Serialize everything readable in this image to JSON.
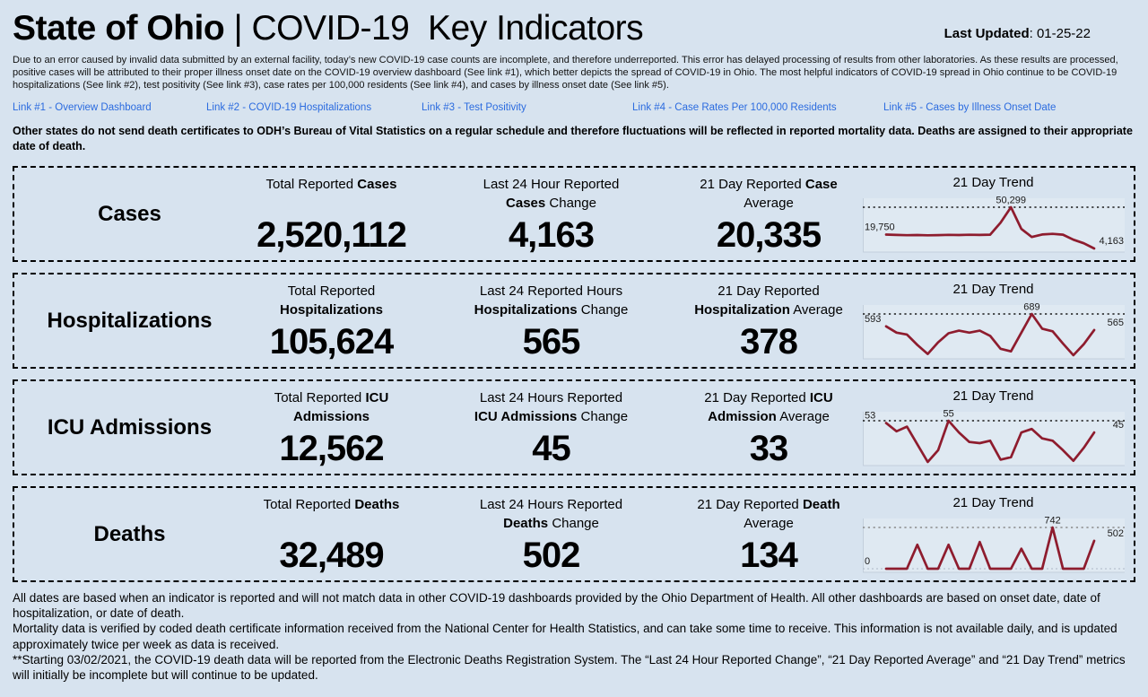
{
  "colors": {
    "page_bg": "#d7e3ef",
    "line": "#8e1c2e",
    "link": "#2b6bdf",
    "border": "#000000"
  },
  "header": {
    "title_bold": "State of Ohio",
    "title_rest": " | COVID-19  Key Indicators",
    "last_updated_label": "Last Updated",
    "last_updated_value": ": 01-25-22"
  },
  "disclaimer": "Due to an error caused by invalid data submitted by an external facility, today’s new COVID-19 case counts are incomplete, and therefore underreported. This error has delayed processing of results from other laboratories. As these results are processed, positive cases will be attributed to their proper illness onset date on the COVID-19 overview dashboard (See link #1), which better depicts the spread of COVID-19 in Ohio. The most helpful indicators of COVID-19 spread in Ohio continue to be COVID-19 hospitalizations (See link #2), test positivity (See link #3), case rates per 100,000 residents (See link #4), and cases by illness onset date (See link #5).",
  "links": [
    "Link #1 - Overview Dashboard",
    "Link #2 - COVID-19 Hospitalizations",
    "Link #3 - Test Positivity",
    "Link #4 - Case Rates Per 100,000 Residents",
    "Link #5 - Cases by Illness Onset Date"
  ],
  "notice": "Other states do not send death certificates to ODH’s Bureau of Vital Statistics on a regular schedule and therefore fluctuations will be reflected in reported mortality data. Deaths are assigned to their appropriate date of death.",
  "rows": [
    {
      "label": "Cases",
      "total_pre": "Total Reported ",
      "total_bold": "Cases",
      "total_post": "",
      "total_value": "2,520,112",
      "change_pre": "Last 24 Hour Reported ",
      "change_bold": "Cases",
      "change_post": " Change",
      "change_value": "4,163",
      "avg_pre": "21 Day Reported ",
      "avg_bold": "Case",
      "avg_post": " Average",
      "avg_value": "20,335",
      "trend_title": "21 Day Trend"
    },
    {
      "label": "Hospitalizations",
      "total_pre": "Total Reported ",
      "total_bold": "Hospitalizations",
      "total_post": "",
      "total_value": "105,624",
      "change_pre": "Last 24 Reported Hours ",
      "change_bold": "Hospitalizations",
      "change_post": " Change",
      "change_value": "565",
      "avg_pre": "21 Day Reported ",
      "avg_bold": "Hospitalization",
      "avg_post": " Average",
      "avg_value": "378",
      "trend_title": "21 Day Trend"
    },
    {
      "label": "ICU Admissions",
      "total_pre": "Total Reported ",
      "total_bold": "ICU Admissions",
      "total_post": "",
      "total_value": "12,562",
      "change_pre": "Last 24 Hours Reported ",
      "change_bold": "ICU Admissions",
      "change_post": " Change",
      "change_value": "45",
      "avg_pre": "21 Day Reported ",
      "avg_bold": "ICU Admission",
      "avg_post": " Average",
      "avg_value": "33",
      "trend_title": "21 Day Trend"
    },
    {
      "label": "Deaths",
      "total_pre": "Total Reported ",
      "total_bold": "Deaths",
      "total_post": "",
      "total_value": "32,489",
      "change_pre": "Last 24 Hours Reported ",
      "change_bold": "Deaths",
      "change_post": " Change",
      "change_value": "502",
      "avg_pre": "21 Day Reported ",
      "avg_bold": "Death",
      "avg_post": " Average",
      "avg_value": "134",
      "trend_title": "21 Day Trend"
    }
  ],
  "chart_data": [
    {
      "type": "line",
      "name": "cases-21-day-trend",
      "title": "21 Day Trend",
      "values": [
        19750,
        19300,
        19000,
        19200,
        18900,
        19100,
        19400,
        19200,
        19500,
        19300,
        19600,
        33000,
        50299,
        26000,
        17000,
        19800,
        20500,
        19600,
        14000,
        10000,
        4163
      ],
      "start_label": "19,750",
      "peak_label": "50,299",
      "end_label": "4,163",
      "ylim": [
        4163,
        50299
      ],
      "line_color": "#8e1c2e",
      "max_line_color": "#1a1a1a",
      "baseline_dotted": false,
      "grid": false,
      "legend": "none"
    },
    {
      "type": "line",
      "name": "hospitalizations-21-day-trend",
      "title": "21 Day Trend",
      "values": [
        593,
        545,
        530,
        450,
        380,
        470,
        540,
        560,
        545,
        560,
        520,
        420,
        400,
        545,
        689,
        575,
        555,
        460,
        370,
        455,
        565
      ],
      "start_label": "593",
      "peak_label": "689",
      "end_label": "565",
      "ylim": [
        370,
        689
      ],
      "line_color": "#8e1c2e",
      "max_line_color": "#1a1a1a",
      "baseline_dotted": false,
      "grid": false,
      "legend": "none"
    },
    {
      "type": "line",
      "name": "icu-admissions-21-day-trend",
      "title": "21 Day Trend",
      "values": [
        53,
        46,
        50,
        35,
        20,
        30,
        55,
        45,
        37,
        36,
        38,
        22,
        24,
        45,
        48,
        40,
        38,
        30,
        21,
        32,
        45
      ],
      "start_label": "53",
      "peak_label": "55",
      "end_label": "45",
      "ylim": [
        20,
        55
      ],
      "line_color": "#8e1c2e",
      "max_line_color": "#1a1a1a",
      "baseline_dotted": false,
      "grid": false,
      "legend": "none"
    },
    {
      "type": "line",
      "name": "deaths-21-day-trend",
      "title": "21 Day Trend",
      "values": [
        0,
        0,
        0,
        430,
        0,
        0,
        430,
        0,
        0,
        480,
        0,
        0,
        0,
        360,
        0,
        0,
        742,
        0,
        0,
        0,
        502
      ],
      "start_label": "0",
      "peak_label": "742",
      "end_label": "502",
      "ylim": [
        0,
        742
      ],
      "line_color": "#8e1c2e",
      "max_line_color": "#8a8a8a",
      "baseline_dotted": true,
      "grid": false,
      "legend": "none"
    }
  ],
  "footer": [
    "All dates are based when an indicator is reported and will not match data in other COVID-19 dashboards provided by the Ohio Department of Health. All other dashboards are based on onset date, date of hospitalization, or date of death.",
    "Mortality data is verified by coded death certificate information received from the National Center for Health Statistics, and can take some time to receive. This information is not available daily, and is updated approximately twice per week as data is received.",
    "**Starting 03/02/2021, the COVID-19 death data will be reported from the Electronic Deaths Registration System. The “Last 24 Hour Reported Change”, “21 Day Reported Average” and “21 Day Trend” metrics will initially be incomplete but will continue to be updated."
  ]
}
